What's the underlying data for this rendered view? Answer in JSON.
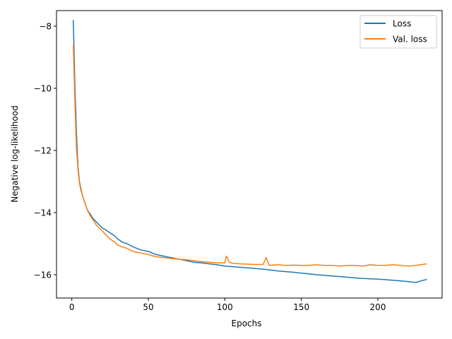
{
  "chart_data": {
    "type": "line",
    "title": "",
    "xlabel": "Epochs",
    "ylabel": "Negative log-likelihood",
    "xlim": [
      -10,
      242
    ],
    "ylim": [
      -16.75,
      -7.5
    ],
    "xticks": [
      0,
      50,
      100,
      150,
      200
    ],
    "yticks": [
      -8,
      -10,
      -12,
      -14,
      -16
    ],
    "legend_position": "top-right",
    "grid": false,
    "series": [
      {
        "name": "Loss",
        "color": "#1f77b4",
        "x": [
          1,
          2,
          3,
          4,
          5,
          6,
          7,
          8,
          9,
          10,
          12,
          14,
          16,
          18,
          20,
          22,
          25,
          28,
          30,
          33,
          36,
          40,
          45,
          50,
          55,
          60,
          65,
          70,
          75,
          80,
          85,
          90,
          95,
          100,
          105,
          110,
          115,
          120,
          125,
          130,
          135,
          140,
          145,
          150,
          155,
          160,
          165,
          170,
          175,
          180,
          185,
          190,
          195,
          200,
          205,
          210,
          215,
          220,
          225,
          228,
          232
        ],
        "y": [
          -7.8,
          -9.9,
          -11.4,
          -12.5,
          -13.0,
          -13.25,
          -13.45,
          -13.6,
          -13.75,
          -13.9,
          -14.05,
          -14.2,
          -14.3,
          -14.4,
          -14.5,
          -14.55,
          -14.65,
          -14.75,
          -14.85,
          -14.95,
          -15.0,
          -15.1,
          -15.2,
          -15.25,
          -15.35,
          -15.4,
          -15.45,
          -15.5,
          -15.55,
          -15.6,
          -15.62,
          -15.65,
          -15.68,
          -15.72,
          -15.74,
          -15.76,
          -15.78,
          -15.8,
          -15.82,
          -15.85,
          -15.88,
          -15.9,
          -15.92,
          -15.95,
          -15.97,
          -16.0,
          -16.02,
          -16.04,
          -16.06,
          -16.08,
          -16.1,
          -16.12,
          -16.13,
          -16.14,
          -16.16,
          -16.18,
          -16.2,
          -16.22,
          -16.25,
          -16.2,
          -16.15
        ]
      },
      {
        "name": "Val. loss",
        "color": "#ff7f0e",
        "x": [
          1,
          2,
          3,
          4,
          5,
          6,
          7,
          8,
          9,
          10,
          12,
          14,
          16,
          18,
          20,
          22,
          25,
          28,
          30,
          33,
          36,
          40,
          45,
          50,
          55,
          60,
          65,
          70,
          75,
          80,
          85,
          90,
          95,
          100,
          101,
          103,
          105,
          110,
          115,
          120,
          125,
          127,
          129,
          135,
          140,
          145,
          150,
          155,
          160,
          165,
          170,
          175,
          180,
          185,
          190,
          195,
          200,
          205,
          210,
          215,
          220,
          225,
          228,
          232
        ],
        "y": [
          -8.6,
          -10.4,
          -11.9,
          -12.6,
          -13.05,
          -13.3,
          -13.45,
          -13.6,
          -13.75,
          -13.9,
          -14.1,
          -14.25,
          -14.4,
          -14.5,
          -14.6,
          -14.7,
          -14.85,
          -14.95,
          -15.05,
          -15.1,
          -15.15,
          -15.25,
          -15.3,
          -15.35,
          -15.42,
          -15.45,
          -15.48,
          -15.5,
          -15.52,
          -15.55,
          -15.58,
          -15.6,
          -15.62,
          -15.62,
          -15.4,
          -15.6,
          -15.63,
          -15.65,
          -15.66,
          -15.67,
          -15.67,
          -15.45,
          -15.7,
          -15.68,
          -15.7,
          -15.69,
          -15.7,
          -15.7,
          -15.68,
          -15.7,
          -15.7,
          -15.72,
          -15.7,
          -15.7,
          -15.72,
          -15.68,
          -15.7,
          -15.7,
          -15.68,
          -15.7,
          -15.72,
          -15.7,
          -15.68,
          -15.65
        ]
      }
    ]
  }
}
